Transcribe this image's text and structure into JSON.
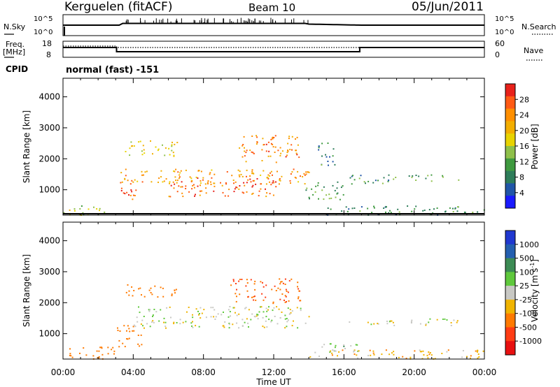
{
  "header": {
    "station": "Kerguelen (fitACF)",
    "beam": "Beam 10",
    "date": "05/Jun/2011"
  },
  "summary": {
    "nsky_label": "N.Sky",
    "nsearch_label": "N.Search",
    "freq_label_1": "Freq.",
    "freq_label_2": "[MHz]",
    "nave_label": "Nave",
    "cpid_label": "CPID",
    "cpid_value": "normal (fast) -151",
    "noise_ticks_left": [
      "10^5",
      "10^0"
    ],
    "noise_ticks_right": [
      "10^5",
      "10^0"
    ],
    "freq_ticks": [
      "18",
      "8"
    ],
    "nave_ticks": [
      "60",
      "0"
    ]
  },
  "colorbars": {
    "power": {
      "label": "Power [dB]",
      "ticks": [
        "28",
        "24",
        "20",
        "16",
        "12",
        "8",
        "4"
      ],
      "colors": [
        "#e8211a",
        "#ff5a14",
        "#ff8f00",
        "#f3ae00",
        "#e8d300",
        "#8fc04a",
        "#3f9a3f",
        "#2e7d5a",
        "#2156a8",
        "#1a1aff"
      ]
    },
    "velocity": {
      "label": "Velocity [m s",
      "label_exp": "-1",
      "label_end": "]",
      "ticks": [
        "1000",
        "500",
        "100",
        "25",
        "-25",
        "-100",
        "-500",
        "-1000"
      ],
      "colors": [
        "#2038d0",
        "#245fb0",
        "#3c8b54",
        "#5fc83c",
        "#c8c8c4",
        "#f0b400",
        "#ff7a00",
        "#ff3c14",
        "#e81010"
      ]
    }
  },
  "chart_data": [
    {
      "type": "heatmap",
      "title": "Power",
      "xlabel": "Time UT",
      "ylabel": "Slant Range [km]",
      "xlim": [
        0,
        24
      ],
      "ylim": [
        180,
        4600
      ],
      "xticks": [
        "00:00",
        "04:00",
        "08:00",
        "12:00",
        "16:00",
        "20:00",
        "00:00"
      ],
      "yticks": [
        "1000",
        "2000",
        "3000",
        "4000"
      ],
      "regions": [
        {
          "t0": 0.0,
          "t1": 2.9,
          "r0": 200,
          "r1": 500,
          "value": 14
        },
        {
          "t0": 3.0,
          "t1": 4.2,
          "r0": 700,
          "r1": 1200,
          "value": 28
        },
        {
          "t0": 3.2,
          "t1": 14.0,
          "r0": 1200,
          "r1": 1700,
          "value": 22
        },
        {
          "t0": 3.5,
          "t1": 6.5,
          "r0": 2100,
          "r1": 2600,
          "value": 16
        },
        {
          "t0": 6.0,
          "t1": 12.5,
          "r0": 800,
          "r1": 1400,
          "value": 26
        },
        {
          "t0": 10.0,
          "t1": 13.5,
          "r0": 1900,
          "r1": 2800,
          "value": 24
        },
        {
          "t0": 13.8,
          "t1": 16.0,
          "r0": 700,
          "r1": 1300,
          "value": 10
        },
        {
          "t0": 14.5,
          "t1": 15.5,
          "r0": 1800,
          "r1": 2600,
          "value": 8
        },
        {
          "t0": 16.0,
          "t1": 19.0,
          "r0": 1200,
          "r1": 1500,
          "value": 8
        },
        {
          "t0": 19.5,
          "t1": 22.5,
          "r0": 1300,
          "r1": 1500,
          "value": 10
        },
        {
          "t0": 15.0,
          "t1": 24.0,
          "r0": 200,
          "r1": 500,
          "value": 8
        }
      ]
    },
    {
      "type": "heatmap",
      "title": "Velocity",
      "xlabel": "Time UT",
      "ylabel": "Slant Range [km]",
      "xlim": [
        0,
        24
      ],
      "ylim": [
        180,
        4600
      ],
      "xticks": [
        "00:00",
        "04:00",
        "08:00",
        "12:00",
        "16:00",
        "20:00",
        "00:00"
      ],
      "yticks": [
        "1000",
        "2000",
        "3000",
        "4000"
      ],
      "regions": [
        {
          "t0": 0.0,
          "t1": 2.9,
          "r0": 200,
          "r1": 600,
          "value": -300
        },
        {
          "t0": 3.0,
          "t1": 4.5,
          "r0": 600,
          "r1": 1300,
          "value": -200
        },
        {
          "t0": 3.5,
          "t1": 6.5,
          "r0": 2200,
          "r1": 2600,
          "value": -400
        },
        {
          "t0": 4.0,
          "t1": 14.0,
          "r0": 1200,
          "r1": 1900,
          "value": 0
        },
        {
          "t0": 9.5,
          "t1": 13.5,
          "r0": 2000,
          "r1": 2800,
          "value": -500
        },
        {
          "t0": 14.5,
          "t1": 17.0,
          "r0": 400,
          "r1": 700,
          "value": 50
        },
        {
          "t0": 16.0,
          "t1": 19.0,
          "r0": 1250,
          "r1": 1450,
          "value": 0
        },
        {
          "t0": 19.5,
          "t1": 22.5,
          "r0": 1250,
          "r1": 1500,
          "value": 0
        },
        {
          "t0": 14.0,
          "t1": 24.0,
          "r0": 200,
          "r1": 500,
          "value": -60
        }
      ]
    }
  ]
}
